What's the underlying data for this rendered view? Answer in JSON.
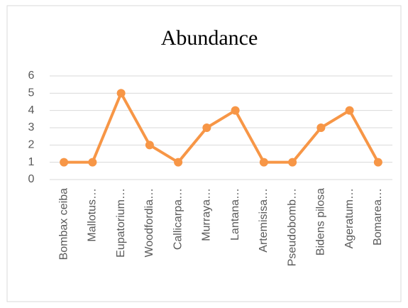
{
  "chart_data": {
    "type": "line",
    "title": "Abundance",
    "categories": [
      "Bombax ceiba",
      "Mallotus…",
      "Eupatorium…",
      "Woodfordia…",
      "Callicarpa…",
      "Murraya…",
      "Lantana…",
      "Artemisisa…",
      "Pseudobomb…",
      "Bidens pilosa",
      "Ageratum…",
      "Bomarea…"
    ],
    "series": [
      {
        "name": "Abundance",
        "color": "#f79646",
        "values": [
          1,
          1,
          5,
          2,
          1,
          3,
          4,
          1,
          1,
          3,
          4,
          1
        ]
      }
    ],
    "ylim": [
      0,
      6
    ],
    "yticks": [
      0,
      1,
      2,
      3,
      4,
      5,
      6
    ],
    "grid": true,
    "legend": false,
    "markers": true
  }
}
